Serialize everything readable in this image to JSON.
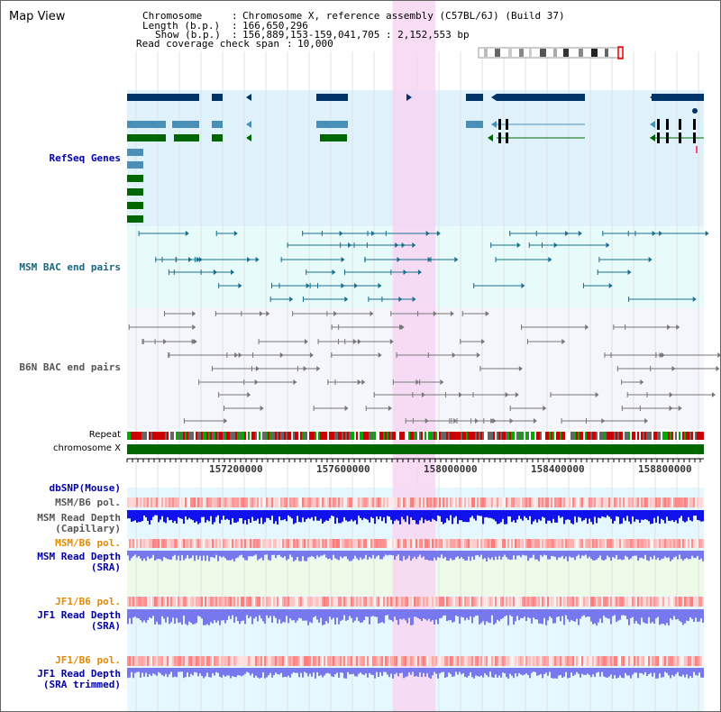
{
  "page": {
    "title": "Map View"
  },
  "info": {
    "chromosome_label": "Chromosome",
    "chromosome_value": "Chromosome X, reference assembly (C57BL/6J) (Build 37)",
    "length_label": "Length (b.p.)",
    "length_value": "166,650,296",
    "show_label": "Show (b.p.)",
    "show_value": "156,889,153-159,041,705 : 2,152,553 bp",
    "span_label": "Read coverage check span",
    "span_value": "10,000"
  },
  "tracks": {
    "refseq": "RefSeq Genes",
    "msm_bac": "MSM BAC end pairs",
    "b6n_bac": "B6N BAC end pairs",
    "repeat": "Repeat",
    "chromosome": "chromosome X",
    "dbsnp": "dbSNP(Mouse)",
    "msm_b6_pol_1": "MSM/B6 pol.",
    "msm_depth_cap_1": "MSM Read Depth",
    "msm_depth_cap_2": "(Capillary)",
    "msm_b6_pol_2": "MSM/B6 pol.",
    "msm_depth_sra_1": "MSM Read Depth",
    "msm_depth_sra_2": "(SRA)",
    "jf1_b6_pol_1": "JF1/B6 pol.",
    "jf1_depth_sra_1": "JF1 Read Depth",
    "jf1_depth_sra_2": "(SRA)",
    "jf1_b6_pol_2": "JF1/B6 pol.",
    "jf1_depth_trim_1": "JF1 Read Depth",
    "jf1_depth_trim_2": "(SRA trimmed)"
  },
  "axis": {
    "ticks": [
      "157200000",
      "157600000",
      "158000000",
      "158400000",
      "158800000"
    ],
    "range_bp": [
      156889153,
      159041705
    ]
  },
  "highlight": {
    "start_bp": 157880000,
    "end_bp": 158040000
  },
  "colors": {
    "refseq_bg": "#dff2fb",
    "msm_bg": "#e8fbfb",
    "b6n_bg": "#f5f6fb",
    "gene_dark": "#003366",
    "gene_mid": "#4a8fb8",
    "gene_green": "#006600",
    "highlight": "#f7d6f2",
    "chrom_bar": "#006600",
    "depth_cap": "#1111ee",
    "depth_sra": "#7777ee"
  }
}
